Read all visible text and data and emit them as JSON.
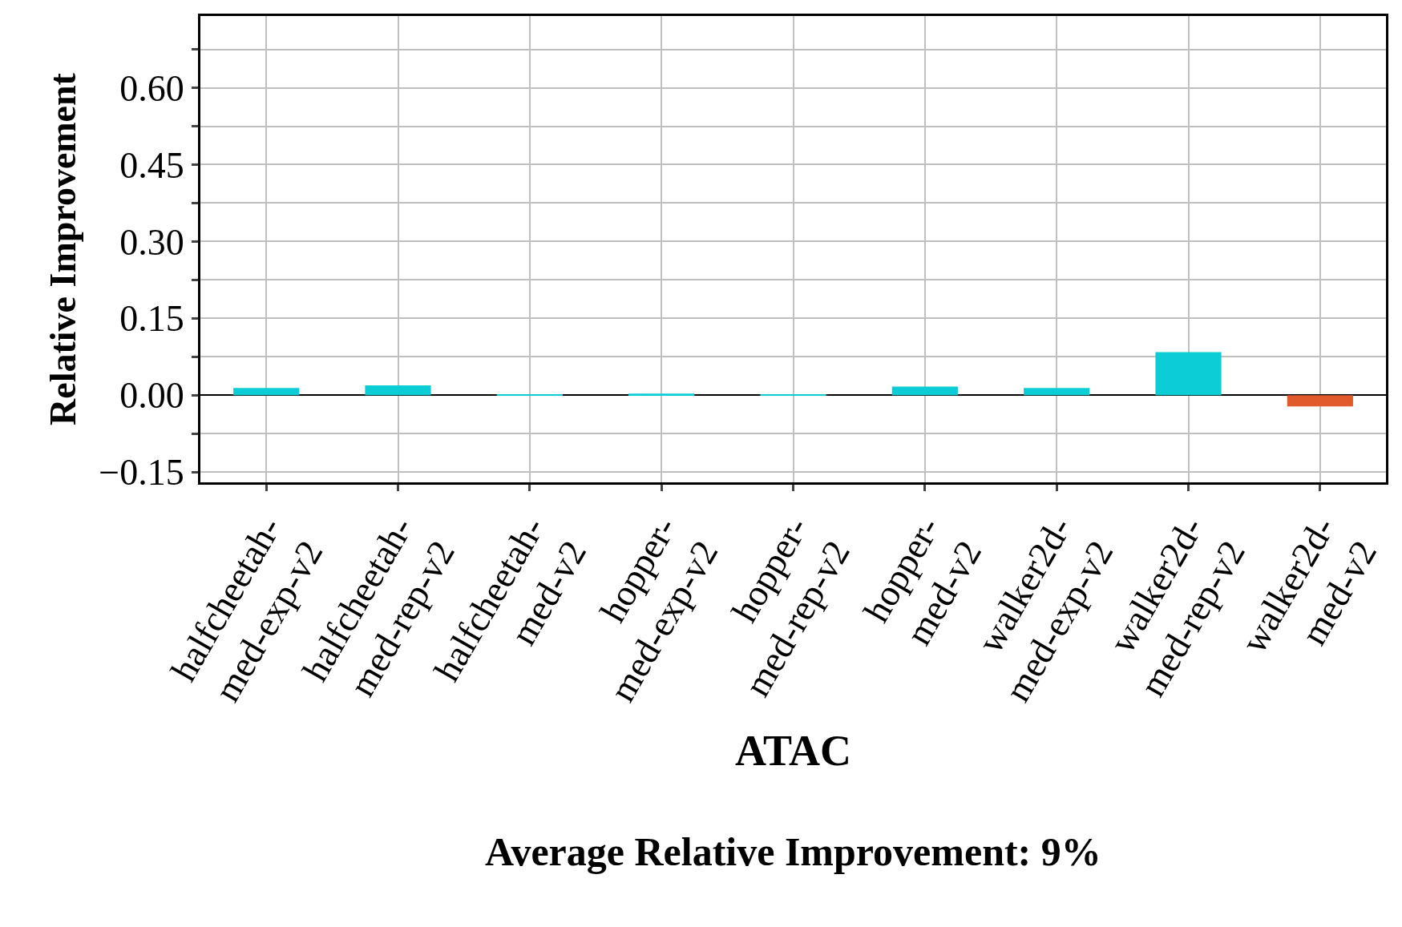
{
  "chart_data": {
    "type": "bar",
    "xlabel": "ATAC",
    "ylabel": "Relative Improvement",
    "annotations": [
      "Average Relative Improvement: 9%"
    ],
    "categories": [
      "halfcheetah-\nmed-exp-v2",
      "halfcheetah-\nmed-rep-v2",
      "halfcheetah-\nmed-v2",
      "hopper-\nmed-exp-v2",
      "hopper-\nmed-rep-v2",
      "hopper-\nmed-v2",
      "walker2d-\nmed-exp-v2",
      "walker2d-\nmed-rep-v2",
      "walker2d-\nmed-v2"
    ],
    "values": [
      0.014,
      0.019,
      0.002,
      0.003,
      0.001,
      0.017,
      0.014,
      0.084,
      -0.022
    ],
    "colors": [
      "#0ccdd6",
      "#0ccdd6",
      "#0ccdd6",
      "#0ccdd6",
      "#0ccdd6",
      "#0ccdd6",
      "#0ccdd6",
      "#0ccdd6",
      "#e05a2b"
    ],
    "ylim": [
      -0.17,
      0.74
    ],
    "yticks": [
      {
        "value": -0.15,
        "label": "−0.15"
      },
      {
        "value": -0.075,
        "label": null
      },
      {
        "value": 0,
        "label": "0.00"
      },
      {
        "value": 0.075,
        "label": null
      },
      {
        "value": 0.15,
        "label": "0.15"
      },
      {
        "value": 0.225,
        "label": null
      },
      {
        "value": 0.3,
        "label": "0.30"
      },
      {
        "value": 0.375,
        "label": null
      },
      {
        "value": 0.45,
        "label": "0.45"
      },
      {
        "value": 0.525,
        "label": null
      },
      {
        "value": 0.6,
        "label": "0.60"
      },
      {
        "value": 0.675,
        "label": null
      }
    ],
    "grid": true
  }
}
